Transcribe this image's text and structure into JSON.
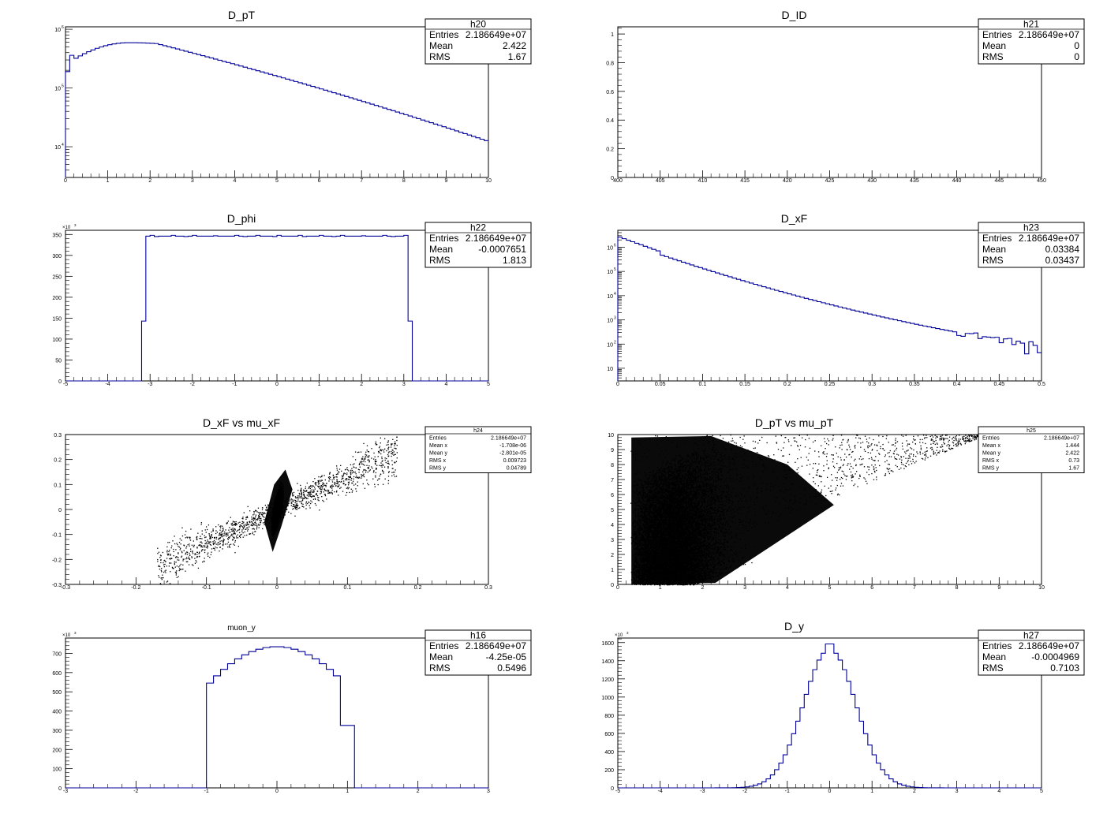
{
  "chart_data": [
    {
      "id": "h20",
      "type": "step_histogram",
      "title": "D_pT",
      "xlabel": "",
      "ylabel": "",
      "log_y": true,
      "xlim": [
        0,
        10
      ],
      "ylim": [
        3000,
        1100000
      ],
      "x_ticks": [
        0,
        1,
        2,
        3,
        4,
        5,
        6,
        7,
        8,
        9,
        10
      ],
      "y_ticks": [
        {
          "v": 10000,
          "base": "10",
          "exp": "4"
        },
        {
          "v": 100000,
          "base": "10",
          "exp": "5"
        },
        {
          "v": 1000000,
          "base": "10",
          "exp": "6"
        }
      ],
      "stats": {
        "name": "h20",
        "rows": [
          [
            "Entries",
            "2.186649e+07"
          ],
          [
            "Mean",
            "2.422"
          ],
          [
            "RMS",
            "1.67"
          ]
        ]
      },
      "curve": {
        "kind": "dpt",
        "nbins": 100
      }
    },
    {
      "id": "h21",
      "type": "step_histogram",
      "title": "D_ID",
      "xlabel": "",
      "ylabel": "",
      "log_y": false,
      "xlim": [
        400,
        450
      ],
      "ylim": [
        0,
        1.05
      ],
      "x_ticks": [
        400,
        405,
        410,
        415,
        420,
        425,
        430,
        435,
        440,
        445,
        450
      ],
      "y_ticks": [
        0,
        0.2,
        0.4,
        0.6,
        0.8,
        1
      ],
      "stats": {
        "name": "h21",
        "rows": [
          [
            "Entries",
            "2.186649e+07"
          ],
          [
            "Mean",
            "0"
          ],
          [
            "RMS",
            "0"
          ]
        ]
      },
      "curve": {
        "kind": "empty"
      }
    },
    {
      "id": "h22",
      "type": "step_histogram",
      "title": "D_phi",
      "xlabel": "",
      "ylabel": "",
      "log_y": false,
      "xlim": [
        -5,
        5
      ],
      "ylim": [
        0,
        360
      ],
      "y_multiplier": {
        "base": "×10",
        "exp": "3"
      },
      "x_ticks": [
        -5,
        -4,
        -3,
        -2,
        -1,
        0,
        1,
        2,
        3,
        4,
        5
      ],
      "y_ticks": [
        0,
        50,
        100,
        150,
        200,
        250,
        300,
        350
      ],
      "stats": {
        "name": "h22",
        "rows": [
          [
            "Entries",
            "2.186649e+07"
          ],
          [
            "Mean",
            "-0.0007651"
          ],
          [
            "RMS",
            "1.813"
          ]
        ]
      },
      "curve": {
        "kind": "phi",
        "nbins": 100,
        "plateau": 346,
        "edge": 143
      }
    },
    {
      "id": "h23",
      "type": "step_histogram",
      "title": "D_xF",
      "xlabel": "",
      "ylabel": "",
      "log_y": true,
      "xlim": [
        0,
        0.5
      ],
      "ylim": [
        3,
        5000000
      ],
      "x_ticks": [
        0,
        0.05,
        0.1,
        0.15,
        0.2,
        0.25,
        0.3,
        0.35,
        0.4,
        0.45,
        0.5
      ],
      "y_ticks": [
        {
          "v": 10,
          "base": "10",
          "exp": ""
        },
        {
          "v": 100,
          "base": "10",
          "exp": "2"
        },
        {
          "v": 1000,
          "base": "10",
          "exp": "3"
        },
        {
          "v": 10000,
          "base": "10",
          "exp": "4"
        },
        {
          "v": 100000,
          "base": "10",
          "exp": "5"
        },
        {
          "v": 1000000,
          "base": "10",
          "exp": "6"
        }
      ],
      "stats": {
        "name": "h23",
        "rows": [
          [
            "Entries",
            "2.186649e+07"
          ],
          [
            "Mean",
            "0.03384"
          ],
          [
            "RMS",
            "0.03437"
          ]
        ]
      },
      "curve": {
        "kind": "xf",
        "nbins": 100
      }
    },
    {
      "id": "h24",
      "type": "scatter",
      "title": "D_xF vs mu_xF",
      "xlabel": "",
      "ylabel": "",
      "xlim": [
        -0.3,
        0.3
      ],
      "ylim": [
        -0.3,
        0.3
      ],
      "x_ticks": [
        -0.3,
        -0.2,
        -0.1,
        0,
        0.1,
        0.2,
        0.3
      ],
      "y_ticks": [
        -0.3,
        -0.2,
        -0.1,
        0,
        0.1,
        0.2,
        0.3
      ],
      "stats": {
        "name": "h24",
        "small": true,
        "rows": [
          [
            "Entries",
            "2.186649e+07"
          ],
          [
            "Mean x",
            "-1.708e-06"
          ],
          [
            "Mean y",
            "-2.801e-05"
          ],
          [
            "RMS x",
            "0.009723"
          ],
          [
            "RMS y",
            "0.04789"
          ]
        ]
      },
      "curve": {
        "kind": "scatter_xf"
      }
    },
    {
      "id": "h25",
      "type": "scatter",
      "title": "D_pT vs mu_pT",
      "xlabel": "",
      "ylabel": "",
      "xlim": [
        0,
        10
      ],
      "ylim": [
        0,
        10
      ],
      "x_ticks": [
        0,
        1,
        2,
        3,
        4,
        5,
        6,
        7,
        8,
        9,
        10
      ],
      "y_ticks": [
        0,
        1,
        2,
        3,
        4,
        5,
        6,
        7,
        8,
        9,
        10
      ],
      "stats": {
        "name": "h25",
        "small": true,
        "rows": [
          [
            "Entries",
            "2.186649e+07"
          ],
          [
            "Mean x",
            "1.444"
          ],
          [
            "Mean y",
            "2.422"
          ],
          [
            "RMS x",
            "0.73"
          ],
          [
            "RMS y",
            "1.67"
          ]
        ]
      },
      "curve": {
        "kind": "scatter_pt"
      }
    },
    {
      "id": "h16",
      "type": "step_histogram",
      "title": "muon_y",
      "title_small": true,
      "xlabel": "",
      "ylabel": "",
      "log_y": false,
      "xlim": [
        -3,
        3
      ],
      "ylim": [
        0,
        780
      ],
      "y_multiplier": {
        "base": "×10",
        "exp": "3"
      },
      "x_ticks": [
        -3,
        -2,
        -1,
        0,
        1,
        2,
        3
      ],
      "y_ticks": [
        0,
        100,
        200,
        300,
        400,
        500,
        600,
        700
      ],
      "stats": {
        "name": "h16",
        "rows": [
          [
            "Entries",
            "2.186649e+07"
          ],
          [
            "Mean",
            "-4.25e-05"
          ],
          [
            "RMS",
            "0.5496"
          ]
        ]
      },
      "curve": {
        "kind": "muony",
        "nbins": 60
      }
    },
    {
      "id": "h27",
      "type": "step_histogram",
      "title": "D_y",
      "xlabel": "",
      "ylabel": "",
      "log_y": false,
      "xlim": [
        -5,
        5
      ],
      "ylim": [
        0,
        1650
      ],
      "y_multiplier": {
        "base": "×10",
        "exp": "3"
      },
      "x_ticks": [
        -5,
        -4,
        -3,
        -2,
        -1,
        0,
        1,
        2,
        3,
        4,
        5
      ],
      "y_ticks": [
        0,
        200,
        400,
        600,
        800,
        1000,
        1200,
        1400,
        1600
      ],
      "stats": {
        "name": "h27",
        "rows": [
          [
            "Entries",
            "2.186649e+07"
          ],
          [
            "Mean",
            "-0.0004969"
          ],
          [
            "RMS",
            "0.7103"
          ]
        ]
      },
      "curve": {
        "kind": "dy",
        "nbins": 100
      }
    }
  ]
}
